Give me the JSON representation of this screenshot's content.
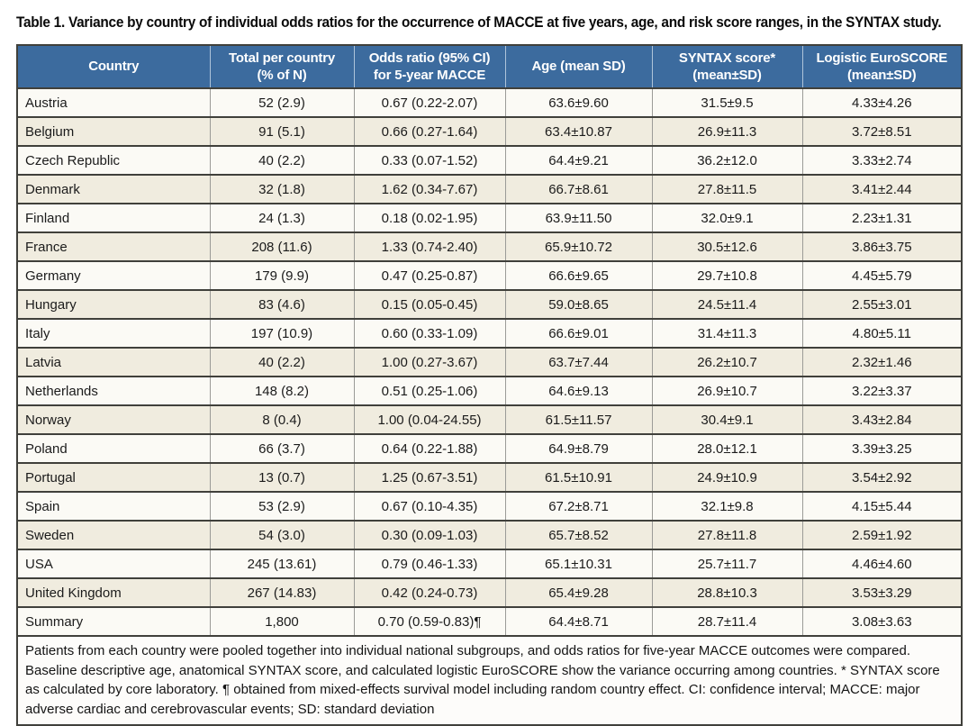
{
  "title": "Table 1. Variance by country of individual odds ratios for the occurrence of MACCE at five years, age, and risk score ranges, in the SYNTAX study.",
  "colors": {
    "header_bg": "#3c6b9e",
    "header_text": "#ffffff",
    "row_alt_bg": "#f0ecdf",
    "row_bg": "#fbfaf5",
    "border_dark": "#40403b",
    "border_gray": "#9b9b97"
  },
  "table": {
    "columns": [
      "Country",
      "Total per country\n(% of N)",
      "Odds ratio (95% CI)\nfor 5-year MACCE",
      "Age (mean SD)",
      "SYNTAX score*\n(mean±SD)",
      "Logistic EuroSCORE\n(mean±SD)"
    ],
    "rows": [
      [
        "Austria",
        "52 (2.9)",
        "0.67 (0.22-2.07)",
        "63.6±9.60",
        "31.5±9.5",
        "4.33±4.26"
      ],
      [
        "Belgium",
        "91 (5.1)",
        "0.66 (0.27-1.64)",
        "63.4±10.87",
        "26.9±11.3",
        "3.72±8.51"
      ],
      [
        "Czech Republic",
        "40 (2.2)",
        "0.33 (0.07-1.52)",
        "64.4±9.21",
        "36.2±12.0",
        "3.33±2.74"
      ],
      [
        "Denmark",
        "32 (1.8)",
        "1.62 (0.34-7.67)",
        "66.7±8.61",
        "27.8±11.5",
        "3.41±2.44"
      ],
      [
        "Finland",
        "24 (1.3)",
        "0.18 (0.02-1.95)",
        "63.9±11.50",
        "32.0±9.1",
        "2.23±1.31"
      ],
      [
        "France",
        "208 (11.6)",
        "1.33 (0.74-2.40)",
        "65.9±10.72",
        "30.5±12.6",
        "3.86±3.75"
      ],
      [
        "Germany",
        "179 (9.9)",
        "0.47 (0.25-0.87)",
        "66.6±9.65",
        "29.7±10.8",
        "4.45±5.79"
      ],
      [
        "Hungary",
        "83 (4.6)",
        "0.15 (0.05-0.45)",
        "59.0±8.65",
        "24.5±11.4",
        "2.55±3.01"
      ],
      [
        "Italy",
        "197 (10.9)",
        "0.60 (0.33-1.09)",
        "66.6±9.01",
        "31.4±11.3",
        "4.80±5.11"
      ],
      [
        "Latvia",
        "40 (2.2)",
        "1.00 (0.27-3.67)",
        "63.7±7.44",
        "26.2±10.7",
        "2.32±1.46"
      ],
      [
        "Netherlands",
        "148 (8.2)",
        "0.51 (0.25-1.06)",
        "64.6±9.13",
        "26.9±10.7",
        "3.22±3.37"
      ],
      [
        "Norway",
        "8 (0.4)",
        "1.00 (0.04-24.55)",
        "61.5±11.57",
        "30.4±9.1",
        "3.43±2.84"
      ],
      [
        "Poland",
        "66 (3.7)",
        "0.64 (0.22-1.88)",
        "64.9±8.79",
        "28.0±12.1",
        "3.39±3.25"
      ],
      [
        "Portugal",
        "13 (0.7)",
        "1.25 (0.67-3.51)",
        "61.5±10.91",
        "24.9±10.9",
        "3.54±2.92"
      ],
      [
        "Spain",
        "53 (2.9)",
        "0.67 (0.10-4.35)",
        "67.2±8.71",
        "32.1±9.8",
        "4.15±5.44"
      ],
      [
        "Sweden",
        "54 (3.0)",
        "0.30 (0.09-1.03)",
        "65.7±8.52",
        "27.8±11.8",
        "2.59±1.92"
      ],
      [
        "USA",
        "245 (13.61)",
        "0.79 (0.46-1.33)",
        "65.1±10.31",
        "25.7±11.7",
        "4.46±4.60"
      ],
      [
        "United Kingdom",
        "267 (14.83)",
        "0.42 (0.24-0.73)",
        "65.4±9.28",
        "28.8±10.3",
        "3.53±3.29"
      ],
      [
        "Summary",
        "1,800",
        "0.70 (0.59-0.83)¶",
        "64.4±8.71",
        "28.7±11.4",
        "3.08±3.63"
      ]
    ]
  },
  "footnote": "Patients from each country were pooled together into individual national subgroups, and odds ratios for five-year MACCE outcomes were compared. Baseline descriptive age, anatomical SYNTAX score, and calculated logistic EuroSCORE show the variance occurring among countries. * SYNTAX score as calculated by core laboratory. ¶ obtained from mixed-effects survival model including random country effect. CI: confidence interval; MACCE: major adverse cardiac and cerebrovascular events; SD: standard deviation"
}
